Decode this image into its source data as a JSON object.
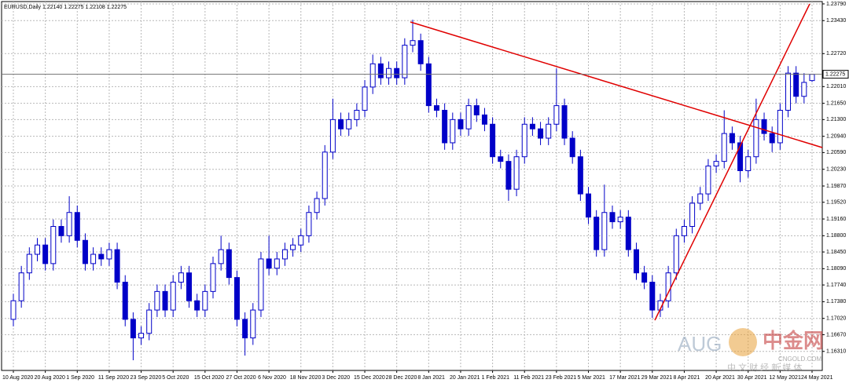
{
  "chart_data": {
    "type": "candlestick",
    "title": "EURUSD,Daily  1.22140 1.22275 1.22108 1.22275",
    "categories": [
      "10 Aug 2020",
      null,
      null,
      null,
      "20 Aug 2020",
      null,
      null,
      null,
      "1 Sep 2020",
      null,
      null,
      null,
      "11 Sep 2020",
      null,
      null,
      null,
      "23 Sep 2020",
      null,
      null,
      null,
      "5 Oct 2020",
      null,
      null,
      null,
      "15 Oct 2020",
      null,
      null,
      null,
      "27 Oct 2020",
      null,
      null,
      null,
      "6 Nov 2020",
      null,
      null,
      null,
      "18 Nov 2020",
      null,
      null,
      null,
      "3 Dec 2020",
      null,
      null,
      null,
      "15 Dec 2020",
      null,
      null,
      null,
      "28 Dec 2020",
      null,
      null,
      null,
      "8 Jan 2021",
      null,
      null,
      null,
      "20 Jan 2021",
      null,
      null,
      null,
      "1 Feb 2021",
      null,
      null,
      null,
      "11 Feb 2021",
      null,
      null,
      null,
      "23 Feb 2021",
      null,
      null,
      null,
      "5 Mar 2021",
      null,
      null,
      null,
      "17 Mar 2021",
      null,
      null,
      null,
      "29 Mar 2021",
      null,
      null,
      null,
      "8 Apr 2021",
      null,
      null,
      null,
      "20 Apr 2021",
      null,
      null,
      null,
      "30 Apr 2021",
      null,
      null,
      null,
      "12 May 2021",
      null,
      null,
      null,
      "24 May 2021"
    ],
    "open": [
      1.17,
      1.174,
      1.18,
      1.184,
      1.186,
      1.182,
      1.19,
      1.188,
      1.193,
      1.187,
      1.182,
      1.184,
      1.183,
      1.185,
      1.178,
      1.17,
      1.166,
      1.167,
      1.172,
      1.176,
      1.172,
      1.178,
      1.18,
      1.174,
      1.172,
      1.176,
      1.182,
      1.185,
      1.179,
      1.17,
      1.166,
      1.172,
      1.183,
      1.181,
      1.183,
      1.185,
      1.186,
      1.188,
      1.193,
      1.196,
      1.206,
      1.213,
      1.211,
      1.213,
      1.215,
      1.22,
      1.225,
      1.222,
      1.224,
      1.222,
      1.229,
      1.23,
      1.225,
      1.216,
      1.215,
      1.208,
      1.213,
      1.211,
      1.216,
      1.214,
      1.212,
      1.205,
      1.204,
      1.198,
      1.205,
      1.212,
      1.211,
      1.209,
      1.212,
      1.216,
      1.209,
      1.205,
      1.197,
      1.192,
      1.185,
      1.193,
      1.191,
      1.192,
      1.185,
      1.18,
      1.178,
      1.172,
      1.174,
      1.18,
      1.188,
      1.19,
      1.195,
      1.197,
      1.203,
      1.204,
      1.21,
      1.208,
      1.202,
      1.205,
      1.213,
      1.21,
      1.208,
      1.215,
      1.223,
      1.218,
      1.2214
    ],
    "high": [
      1.1755,
      1.1815,
      1.1855,
      1.1875,
      1.1875,
      1.1915,
      1.1915,
      1.1965,
      1.1945,
      1.1885,
      1.1855,
      1.1855,
      1.1865,
      1.1865,
      1.1795,
      1.1715,
      1.1685,
      1.1735,
      1.1775,
      1.1775,
      1.1795,
      1.1815,
      1.1815,
      1.1755,
      1.1775,
      1.1835,
      1.188,
      1.1865,
      1.1805,
      1.1715,
      1.1735,
      1.1845,
      1.188,
      1.1845,
      1.1865,
      1.1875,
      1.1895,
      1.1945,
      1.1975,
      1.2075,
      1.2175,
      1.2145,
      1.2145,
      1.2165,
      1.2215,
      1.227,
      1.2265,
      1.2255,
      1.2255,
      1.2305,
      1.2345,
      1.2315,
      1.2265,
      1.2175,
      1.2165,
      1.2145,
      1.2145,
      1.2175,
      1.2175,
      1.2155,
      1.2135,
      1.2065,
      1.2055,
      1.2065,
      1.2135,
      1.2135,
      1.2125,
      1.2135,
      1.224,
      1.2175,
      1.2105,
      1.2065,
      1.1985,
      1.1935,
      1.199,
      1.1945,
      1.1935,
      1.1935,
      1.1865,
      1.1815,
      1.1795,
      1.1755,
      1.1815,
      1.1895,
      1.1915,
      1.1965,
      1.1985,
      1.2045,
      1.2055,
      1.215,
      1.2115,
      1.2095,
      1.2065,
      1.2175,
      1.2145,
      1.2115,
      1.2165,
      1.2245,
      1.2245,
      1.223,
      1.22275
    ],
    "low": [
      1.1685,
      1.1725,
      1.1785,
      1.1825,
      1.1805,
      1.1805,
      1.1865,
      1.1865,
      1.1855,
      1.1805,
      1.1805,
      1.1815,
      1.1815,
      1.1765,
      1.1685,
      1.1612,
      1.1645,
      1.1655,
      1.1705,
      1.1705,
      1.1705,
      1.1765,
      1.1725,
      1.1705,
      1.1705,
      1.1745,
      1.1805,
      1.1775,
      1.1685,
      1.1622,
      1.1645,
      1.1705,
      1.1795,
      1.1795,
      1.1815,
      1.1835,
      1.1845,
      1.1865,
      1.1915,
      1.1945,
      1.2045,
      1.2095,
      1.2095,
      1.2115,
      1.2135,
      1.2185,
      1.2205,
      1.2205,
      1.2205,
      1.2205,
      1.2275,
      1.2235,
      1.2145,
      1.2135,
      1.2065,
      1.2065,
      1.2095,
      1.2095,
      1.2125,
      1.2105,
      1.2035,
      1.2025,
      1.1955,
      1.1965,
      1.2035,
      1.2095,
      1.2075,
      1.2075,
      1.2105,
      1.2075,
      1.2035,
      1.1955,
      1.1905,
      1.1835,
      1.1835,
      1.1895,
      1.1895,
      1.1835,
      1.1785,
      1.1765,
      1.1703,
      1.1705,
      1.1725,
      1.1785,
      1.1865,
      1.1885,
      1.1935,
      1.1955,
      1.2015,
      1.2025,
      1.2065,
      1.1995,
      1.2005,
      1.2035,
      1.2085,
      1.206,
      1.2065,
      1.2135,
      1.2165,
      1.2165,
      1.22108
    ],
    "close": [
      1.174,
      1.18,
      1.184,
      1.186,
      1.182,
      1.19,
      1.188,
      1.193,
      1.187,
      1.182,
      1.184,
      1.183,
      1.185,
      1.178,
      1.17,
      1.166,
      1.167,
      1.172,
      1.176,
      1.172,
      1.178,
      1.18,
      1.174,
      1.172,
      1.176,
      1.182,
      1.185,
      1.179,
      1.17,
      1.166,
      1.172,
      1.183,
      1.181,
      1.183,
      1.185,
      1.186,
      1.188,
      1.193,
      1.196,
      1.206,
      1.213,
      1.211,
      1.213,
      1.215,
      1.22,
      1.225,
      1.222,
      1.224,
      1.222,
      1.229,
      1.23,
      1.225,
      1.216,
      1.215,
      1.208,
      1.213,
      1.211,
      1.216,
      1.214,
      1.212,
      1.205,
      1.204,
      1.198,
      1.205,
      1.212,
      1.211,
      1.209,
      1.212,
      1.216,
      1.209,
      1.205,
      1.197,
      1.192,
      1.185,
      1.193,
      1.191,
      1.192,
      1.185,
      1.18,
      1.178,
      1.172,
      1.174,
      1.18,
      1.188,
      1.19,
      1.195,
      1.197,
      1.203,
      1.204,
      1.21,
      1.208,
      1.202,
      1.205,
      1.213,
      1.21,
      1.208,
      1.215,
      1.223,
      1.218,
      1.221,
      1.22275
    ],
    "color": "#0000c8",
    "current_price": {
      "value": 1.22275,
      "label": "1.22275"
    },
    "ylim": [
      1.159,
      1.2384
    ],
    "yticks": [
      {
        "value": 1.2379,
        "label": "1.23790"
      },
      {
        "value": 1.2343,
        "label": "1.23430"
      },
      {
        "value": 1.2272,
        "label": "1.22720"
      },
      {
        "value": 1.2201,
        "label": "1.22010"
      },
      {
        "value": 1.2165,
        "label": "1.21650"
      },
      {
        "value": 1.213,
        "label": "1.21300"
      },
      {
        "value": 1.2094,
        "label": "1.20940"
      },
      {
        "value": 1.2059,
        "label": "1.20590"
      },
      {
        "value": 1.2023,
        "label": "1.20230"
      },
      {
        "value": 1.1987,
        "label": "1.19870"
      },
      {
        "value": 1.1952,
        "label": "1.19520"
      },
      {
        "value": 1.1916,
        "label": "1.19160"
      },
      {
        "value": 1.188,
        "label": "1.18800"
      },
      {
        "value": 1.1845,
        "label": "1.18450"
      },
      {
        "value": 1.1809,
        "label": "1.18090"
      },
      {
        "value": 1.1774,
        "label": "1.17740"
      },
      {
        "value": 1.1738,
        "label": "1.17380"
      },
      {
        "value": 1.1702,
        "label": "1.17020"
      },
      {
        "value": 1.1667,
        "label": "1.16670"
      },
      {
        "value": 1.1631,
        "label": "1.16310"
      }
    ],
    "grid": true,
    "watermark": {
      "brand": "AUG",
      "cn": "中金网",
      "site": "CNGOLD.COM",
      "tagline": "中 文 财 经 新 媒 体"
    }
  }
}
